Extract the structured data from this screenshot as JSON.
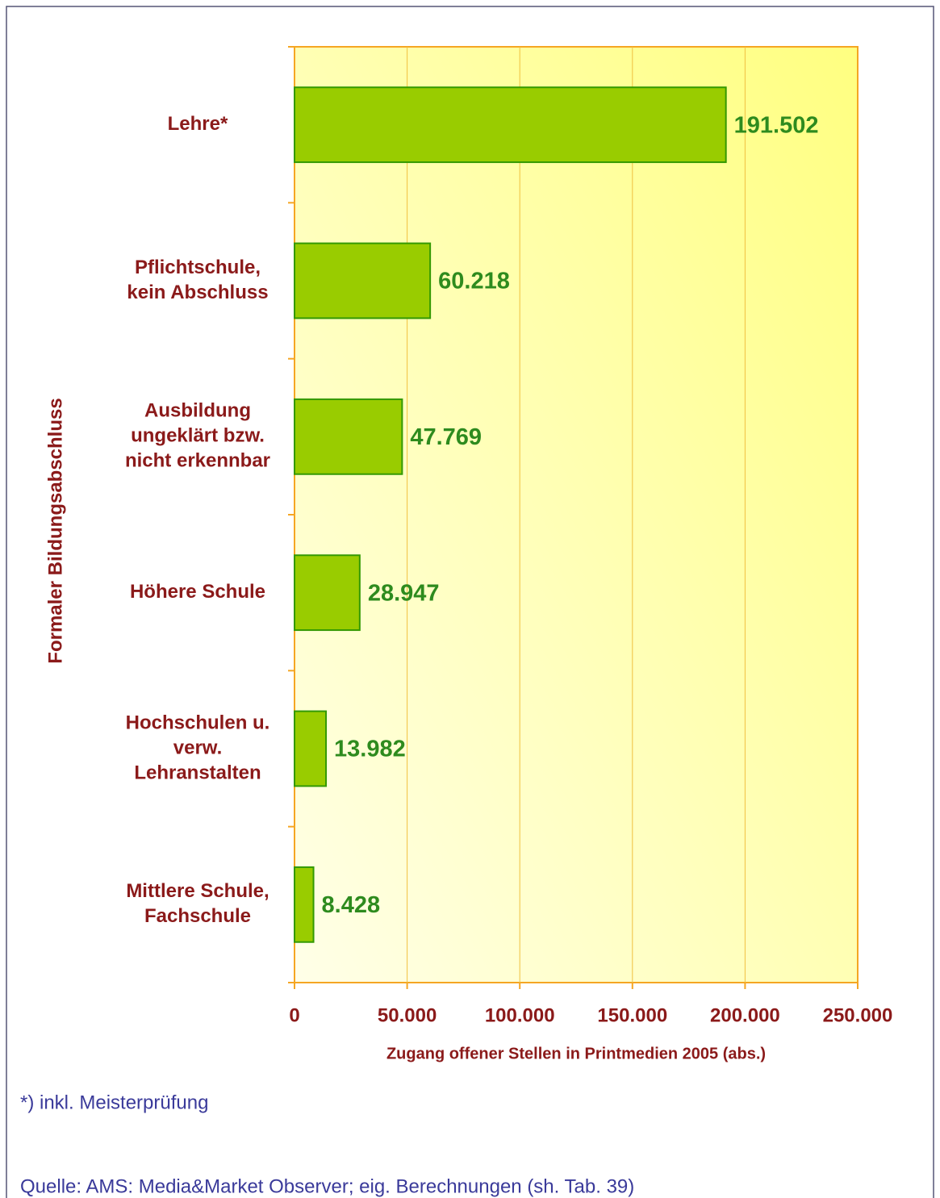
{
  "chart_data": {
    "type": "bar",
    "orientation": "horizontal",
    "ylabel": "Formaler Bildungsabschluss",
    "xlabel": "Zugang offener Stellen in Printmedien 2005 (abs.)",
    "categories": [
      [
        "Lehre*"
      ],
      [
        "Pflichtschule,",
        "kein Abschluss"
      ],
      [
        "Ausbildung",
        "ungeklärt bzw.",
        "nicht erkennbar"
      ],
      [
        "Höhere Schule"
      ],
      [
        "Hochschulen u.",
        "verw.",
        "Lehranstalten"
      ],
      [
        "Mittlere Schule,",
        "Fachschule"
      ]
    ],
    "values": [
      191502,
      60218,
      47769,
      28947,
      13982,
      8428
    ],
    "value_labels": [
      "191.502",
      "60.218",
      "47.769",
      "28.947",
      "13.982",
      "8.428"
    ],
    "color": "#99cc00",
    "xlim": [
      0,
      250000
    ],
    "xticks": [
      0,
      {
        "value": 50000,
        "label": "50.000"
      },
      {
        "value": 100000,
        "label": "100.000"
      },
      {
        "value": 150000,
        "label": "150.000"
      },
      {
        "value": 200000,
        "label": "200.000"
      },
      {
        "value": 250000,
        "label": "250.000"
      }
    ],
    "grid": true
  },
  "notes": {
    "footnote": "*) inkl. Meisterprüfung",
    "source": "Quelle: AMS: Media&Market Observer; eig. Berechnungen (sh. Tab. 39)"
  }
}
